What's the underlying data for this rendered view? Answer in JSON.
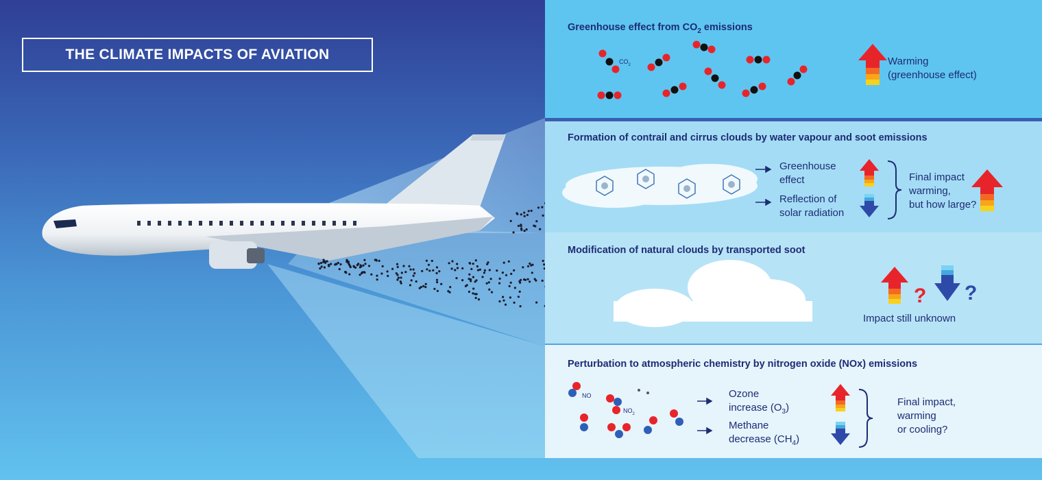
{
  "title": "THE CLIMATE IMPACTS OF AVIATION",
  "panels": {
    "co2": {
      "title_main": "Greenhouse effect from CO",
      "title_sub": "2",
      "title_end": " emissions",
      "molecule_label": "CO",
      "molecule_sub": "2",
      "effect_line1": "Warming",
      "effect_line2": "(greenhouse effect)"
    },
    "contrail": {
      "title": "Formation of contrail and cirrus clouds by water vapour and soot emissions",
      "effect1_line1": "Greenhouse",
      "effect1_line2": "effect",
      "effect2_line1": "Reflection of",
      "effect2_line2": "solar radiation",
      "final_line1": "Final impact",
      "final_line2": "warming,",
      "final_line3": "but how large?"
    },
    "soot": {
      "title": "Modification of natural clouds by transported soot",
      "question": "?",
      "final": "Impact still unknown"
    },
    "nox": {
      "title": "Perturbation to atmospheric chemistry by nitrogen oxide (NOx) emissions",
      "no_label": "NO",
      "no2_label": "NO",
      "no2_sub": "2",
      "ozone_line1": "Ozone",
      "ozone_line2_pre": "increase (O",
      "ozone_sub": "3",
      "ozone_line2_post": ")",
      "methane_line1": "Methane",
      "methane_line2_pre": "decrease (CH",
      "methane_sub": "4",
      "methane_line2_post": ")",
      "final_line1": "Final impact,",
      "final_line2": "warming",
      "final_line3": "or cooling?"
    }
  },
  "colors": {
    "navy_text": "#1d2c73",
    "warming_red": "#e8242b",
    "cooling_blue": "#2e4aa8",
    "oxygen_red": "#e8242b",
    "carbon_black": "#111111",
    "nitrogen_blue": "#2e5fb8",
    "question_red": "#e8242b",
    "question_blue": "#2e4aa8"
  }
}
